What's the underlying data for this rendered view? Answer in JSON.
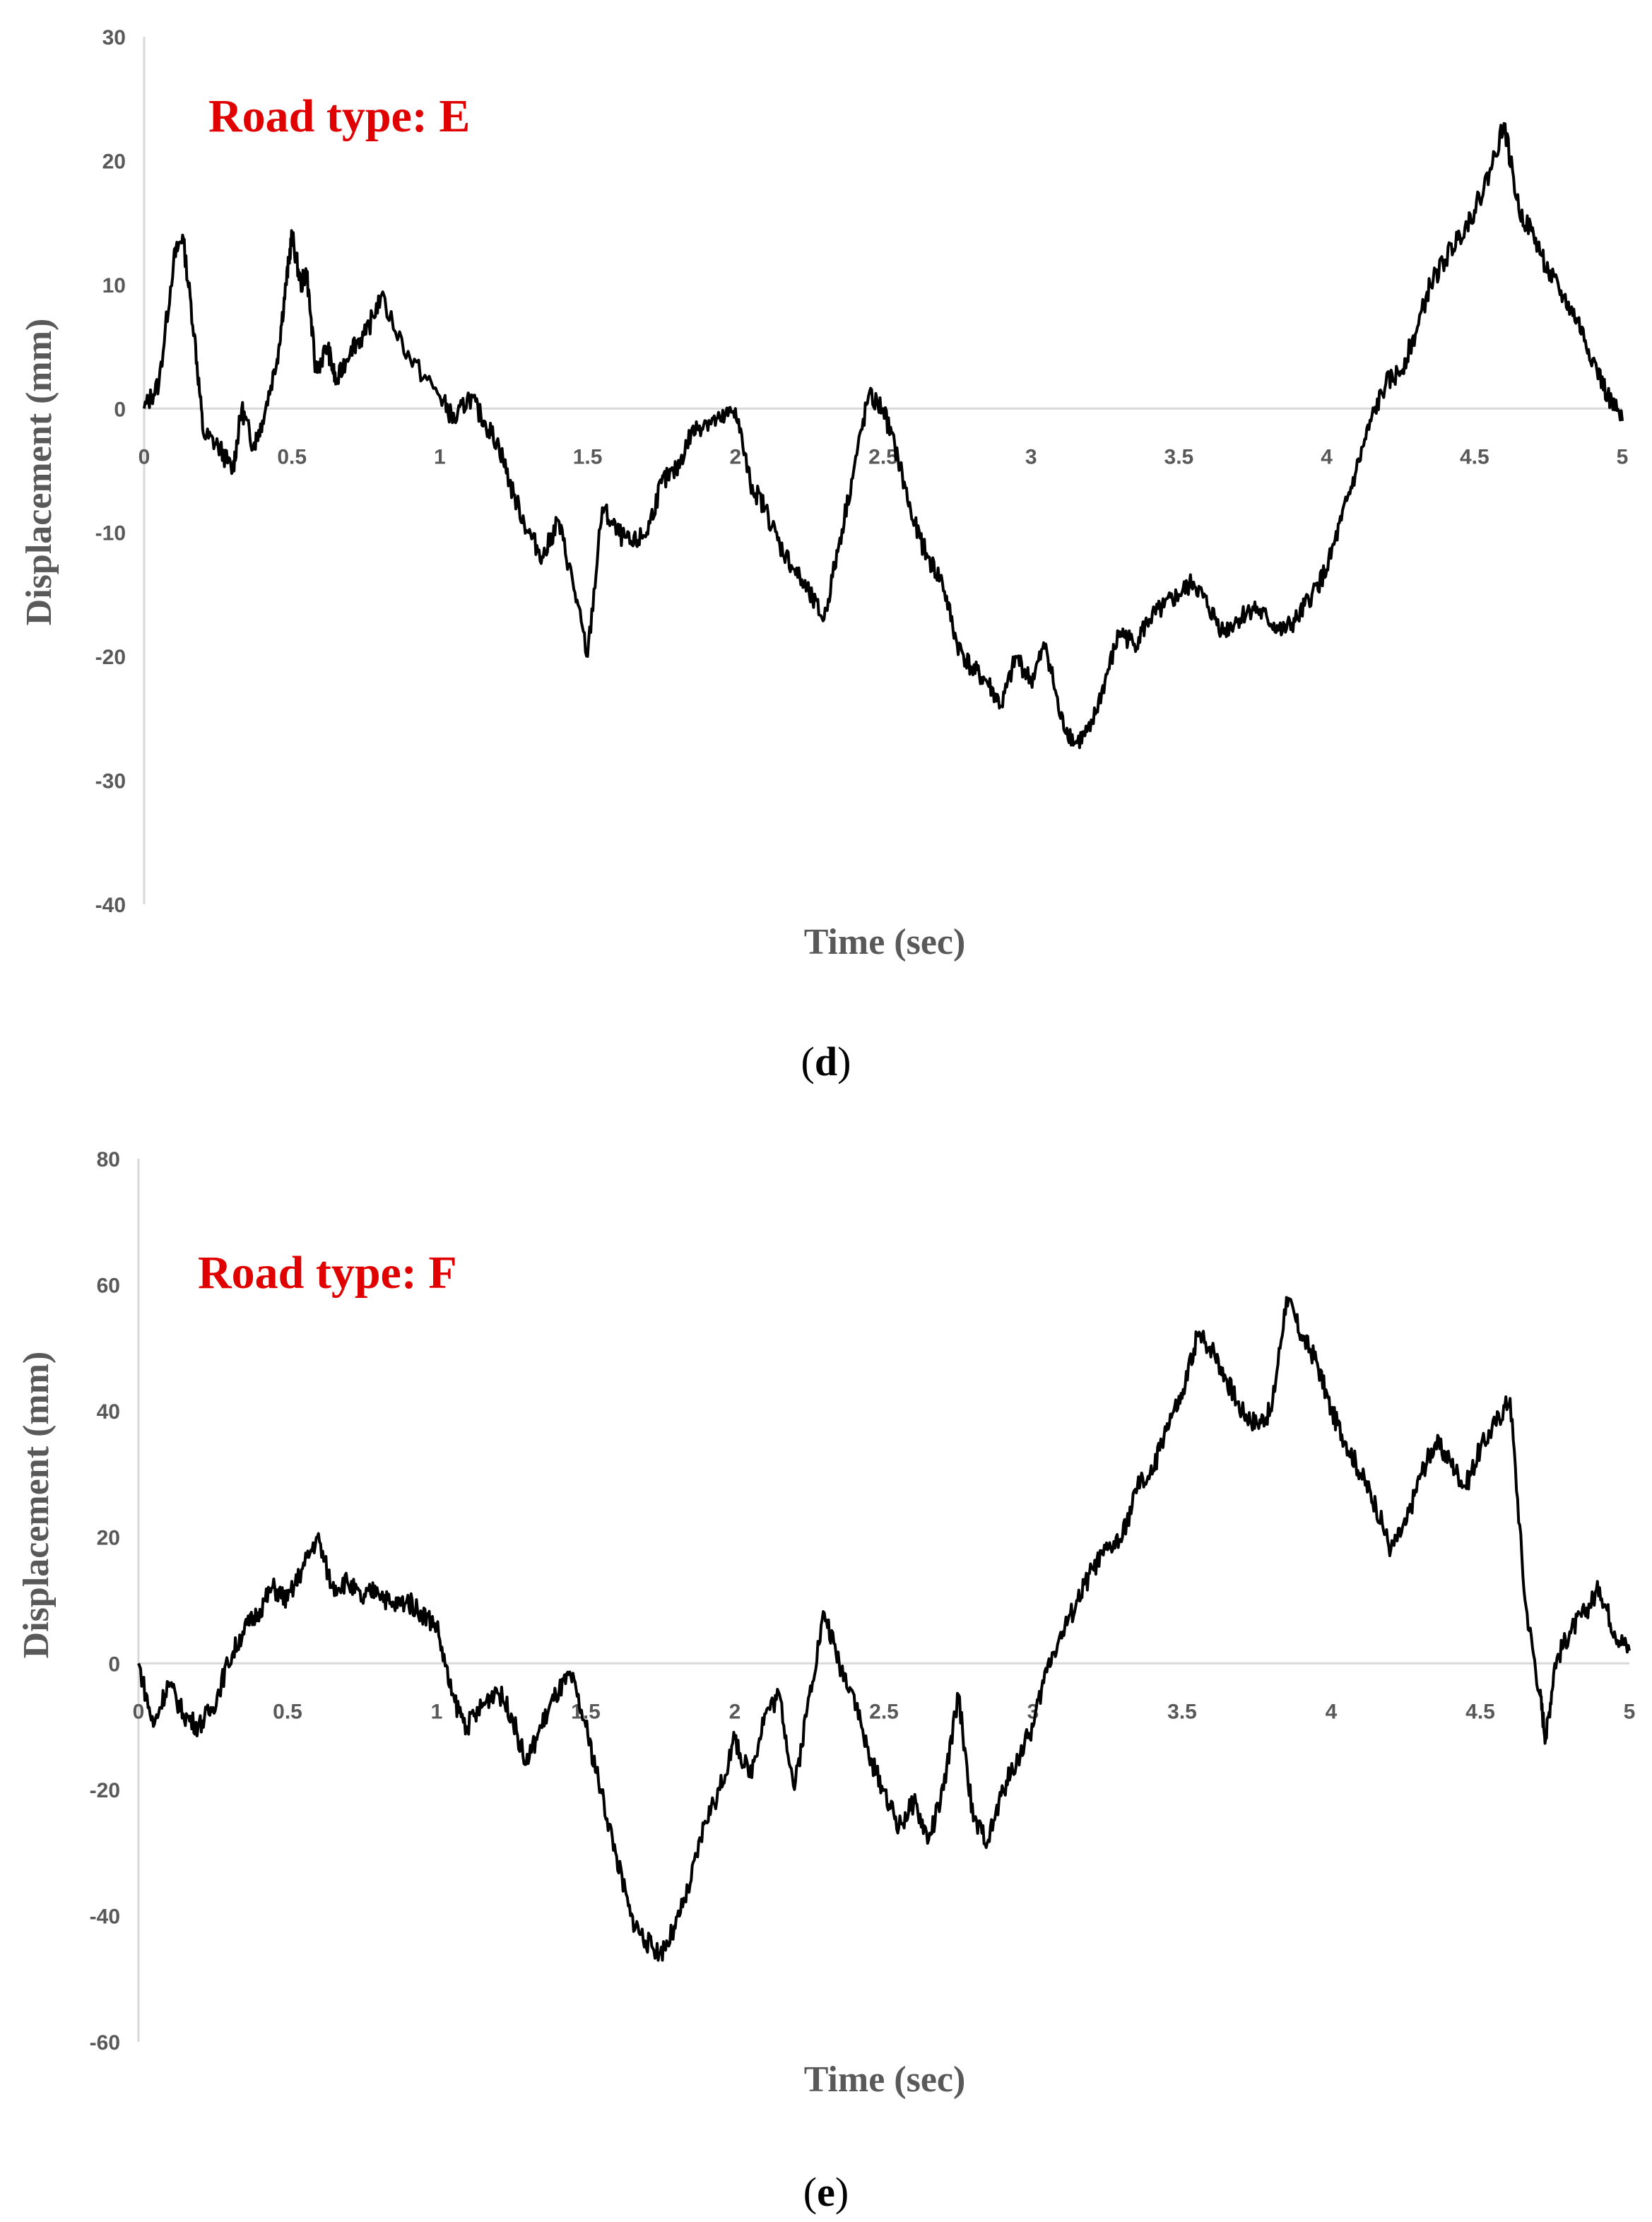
{
  "chart_data": [
    {
      "type": "line",
      "panel": "d",
      "caption": "(d)",
      "annotation": "Road type: E",
      "xlabel": "Time (sec)",
      "ylabel": "Displacement (mm)",
      "xlim": [
        0,
        5
      ],
      "ylim": [
        -40,
        30
      ],
      "xticks": [
        "0",
        "0.5",
        "1",
        "1.5",
        "2",
        "2.5",
        "3",
        "3.5",
        "4",
        "4.5",
        "5"
      ],
      "yticks": [
        "30",
        "20",
        "10",
        "0",
        "-10",
        "-20",
        "-30",
        "-40"
      ],
      "grid": false,
      "line_color": "#000000",
      "annotation_color": "#e00000",
      "series": [
        {
          "x": [
            0,
            0.05,
            0.1,
            0.13,
            0.17,
            0.2,
            0.25,
            0.3,
            0.33,
            0.37,
            0.4,
            0.45,
            0.48,
            0.5,
            0.53,
            0.55,
            0.58,
            0.62,
            0.65,
            0.7,
            0.75,
            0.8,
            0.9,
            1.0,
            1.05,
            1.1,
            1.15,
            1.2,
            1.25,
            1.3,
            1.35,
            1.4,
            1.45,
            1.5,
            1.55,
            1.6,
            1.65,
            1.7,
            1.75,
            1.8,
            1.85,
            1.9,
            1.95,
            2.0,
            2.05,
            2.1,
            2.15,
            2.2,
            2.25,
            2.3,
            2.35,
            2.4,
            2.45,
            2.5,
            2.55,
            2.6,
            2.65,
            2.7,
            2.75,
            2.8,
            2.85,
            2.9,
            2.95,
            3.0,
            3.05,
            3.1,
            3.15,
            3.2,
            3.25,
            3.3,
            3.35,
            3.4,
            3.45,
            3.5,
            3.55,
            3.6,
            3.65,
            3.7,
            3.75,
            3.8,
            3.85,
            3.9,
            3.95,
            4.0,
            4.05,
            4.1,
            4.15,
            4.2,
            4.25,
            4.3,
            4.35,
            4.4,
            4.45,
            4.5,
            4.55,
            4.6,
            4.65,
            4.7,
            4.75,
            4.8,
            4.85,
            4.9,
            4.95,
            5.0
          ],
          "y": [
            0,
            2,
            12,
            14,
            6,
            -2,
            -3,
            -5,
            0,
            -3,
            -1,
            4,
            10,
            14,
            10,
            11,
            3,
            5,
            2,
            5,
            6,
            9,
            4,
            1,
            -1,
            1,
            -1,
            -3,
            -7,
            -10,
            -12,
            -9,
            -14,
            -20,
            -8,
            -10,
            -11,
            -10,
            -6,
            -5,
            -2,
            -1,
            -1,
            0,
            -6,
            -8,
            -11,
            -13,
            -15,
            -17,
            -11,
            -5,
            1,
            0,
            -4,
            -9,
            -12,
            -14,
            -19,
            -21,
            -22,
            -24,
            -20,
            -22,
            -19,
            -25,
            -27,
            -26,
            -22,
            -18,
            -19,
            -17,
            -16,
            -15,
            -14,
            -16,
            -18,
            -17,
            -16,
            -17,
            -18,
            -17,
            -15,
            -13,
            -9,
            -5,
            -1,
            2,
            3,
            6,
            10,
            12,
            14,
            16,
            19,
            23,
            16,
            14,
            11,
            9,
            7,
            4,
            1,
            -1
          ]
        }
      ]
    },
    {
      "type": "line",
      "panel": "e",
      "caption": "(e)",
      "annotation": "Road type: F",
      "xlabel": "Time (sec)",
      "ylabel": "Displacement (mm)",
      "xlim": [
        0,
        5
      ],
      "ylim": [
        -60,
        80
      ],
      "xticks": [
        "0",
        "0.5",
        "1",
        "1.5",
        "2",
        "2.5",
        "3",
        "3.5",
        "4",
        "4.5",
        "5"
      ],
      "yticks": [
        "80",
        "60",
        "40",
        "20",
        "0",
        "-20",
        "-40",
        "-60"
      ],
      "grid": false,
      "line_color": "#000000",
      "annotation_color": "#e00000",
      "series": [
        {
          "x": [
            0,
            0.05,
            0.1,
            0.15,
            0.2,
            0.25,
            0.3,
            0.35,
            0.4,
            0.45,
            0.5,
            0.55,
            0.6,
            0.65,
            0.7,
            0.75,
            0.8,
            0.85,
            0.9,
            0.95,
            1.0,
            1.05,
            1.1,
            1.15,
            1.2,
            1.25,
            1.3,
            1.35,
            1.4,
            1.45,
            1.5,
            1.55,
            1.6,
            1.65,
            1.7,
            1.75,
            1.8,
            1.85,
            1.9,
            1.95,
            2.0,
            2.05,
            2.1,
            2.15,
            2.2,
            2.25,
            2.3,
            2.35,
            2.4,
            2.45,
            2.5,
            2.55,
            2.6,
            2.65,
            2.7,
            2.75,
            2.8,
            2.85,
            2.9,
            2.95,
            3.0,
            3.05,
            3.1,
            3.15,
            3.2,
            3.25,
            3.3,
            3.35,
            3.4,
            3.45,
            3.5,
            3.55,
            3.6,
            3.65,
            3.7,
            3.75,
            3.8,
            3.85,
            3.9,
            3.95,
            4.0,
            4.05,
            4.1,
            4.15,
            4.2,
            4.25,
            4.3,
            4.35,
            4.4,
            4.45,
            4.5,
            4.55,
            4.6,
            4.65,
            4.7,
            4.72,
            4.75,
            4.8,
            4.85,
            4.9,
            4.95,
            5.0
          ],
          "y": [
            0,
            -10,
            -3,
            -8,
            -10,
            -7,
            0,
            5,
            8,
            12,
            10,
            15,
            20,
            12,
            13,
            10,
            12,
            9,
            10,
            8,
            6,
            -5,
            -10,
            -7,
            -4,
            -8,
            -16,
            -10,
            -5,
            -2,
            -10,
            -20,
            -30,
            -40,
            -44,
            -46,
            -42,
            -35,
            -25,
            -20,
            -12,
            -18,
            -8,
            -5,
            -20,
            -5,
            8,
            0,
            -5,
            -15,
            -20,
            -26,
            -22,
            -28,
            -20,
            -5,
            -25,
            -28,
            -20,
            -15,
            -10,
            0,
            5,
            10,
            15,
            18,
            20,
            28,
            30,
            38,
            42,
            52,
            50,
            45,
            40,
            38,
            40,
            58,
            52,
            48,
            40,
            35,
            30,
            25,
            18,
            22,
            30,
            35,
            32,
            28,
            34,
            38,
            42,
            10,
            -5,
            -12,
            0,
            5,
            8,
            12,
            5,
            2
          ]
        }
      ]
    }
  ]
}
